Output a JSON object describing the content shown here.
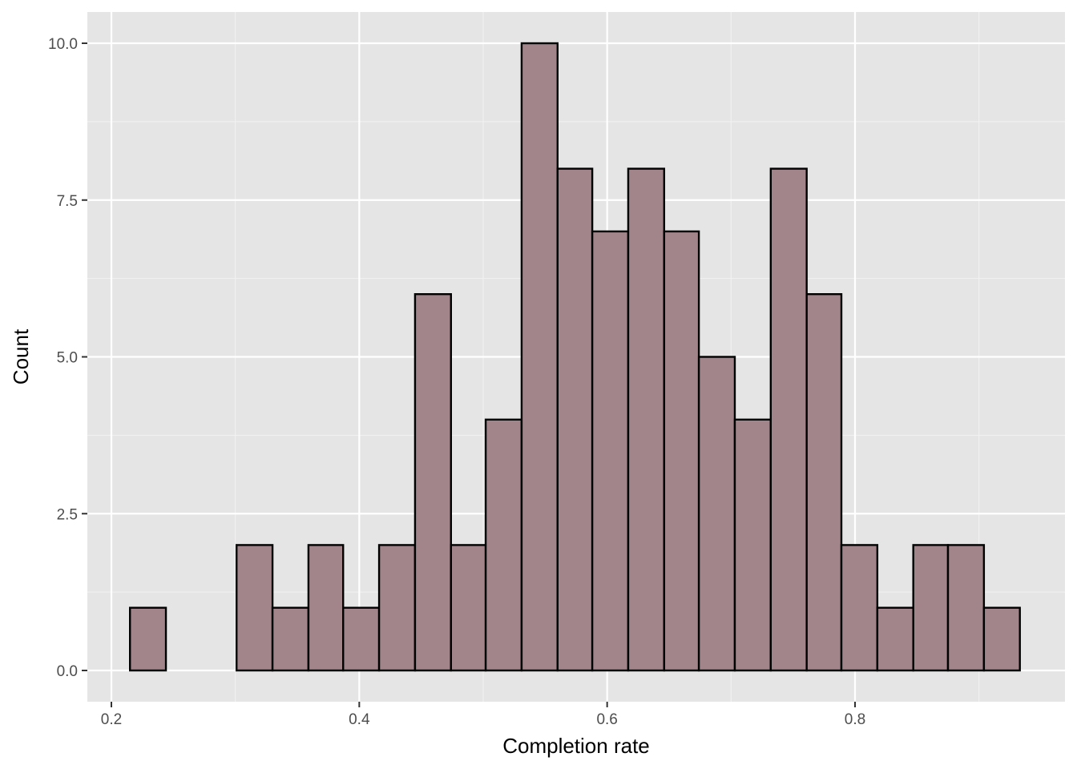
{
  "chart_data": {
    "type": "bar",
    "subtype": "histogram",
    "title": "",
    "xlabel": "Completion rate",
    "ylabel": "Count",
    "xlim": [
      0.2,
      0.9
    ],
    "ylim": [
      0,
      10
    ],
    "x_ticks": [
      0.2,
      0.4,
      0.6,
      0.8
    ],
    "x_tick_labels": [
      "0.2",
      "0.4",
      "0.6",
      "0.8"
    ],
    "y_ticks": [
      0,
      2.5,
      5,
      7.5,
      10
    ],
    "y_tick_labels": [
      "0.0",
      "2.5",
      "5.0",
      "7.5",
      "10.0"
    ],
    "bin_width": 0.0287,
    "bins": [
      {
        "x0": 0.215,
        "x1": 0.244,
        "count": 1
      },
      {
        "x0": 0.244,
        "x1": 0.273,
        "count": 0
      },
      {
        "x0": 0.273,
        "x1": 0.301,
        "count": 0
      },
      {
        "x0": 0.301,
        "x1": 0.33,
        "count": 2
      },
      {
        "x0": 0.33,
        "x1": 0.359,
        "count": 1
      },
      {
        "x0": 0.359,
        "x1": 0.387,
        "count": 2
      },
      {
        "x0": 0.387,
        "x1": 0.416,
        "count": 1
      },
      {
        "x0": 0.416,
        "x1": 0.445,
        "count": 2
      },
      {
        "x0": 0.445,
        "x1": 0.474,
        "count": 6
      },
      {
        "x0": 0.474,
        "x1": 0.502,
        "count": 2
      },
      {
        "x0": 0.502,
        "x1": 0.531,
        "count": 4
      },
      {
        "x0": 0.531,
        "x1": 0.56,
        "count": 10
      },
      {
        "x0": 0.56,
        "x1": 0.588,
        "count": 8
      },
      {
        "x0": 0.588,
        "x1": 0.617,
        "count": 7
      },
      {
        "x0": 0.617,
        "x1": 0.646,
        "count": 8
      },
      {
        "x0": 0.646,
        "x1": 0.674,
        "count": 7
      },
      {
        "x0": 0.674,
        "x1": 0.703,
        "count": 5
      },
      {
        "x0": 0.703,
        "x1": 0.732,
        "count": 4
      },
      {
        "x0": 0.732,
        "x1": 0.761,
        "count": 8
      },
      {
        "x0": 0.761,
        "x1": 0.789,
        "count": 6
      },
      {
        "x0": 0.789,
        "x1": 0.818,
        "count": 2
      },
      {
        "x0": 0.818,
        "x1": 0.847,
        "count": 1
      },
      {
        "x0": 0.847,
        "x1": 0.875,
        "count": 2
      },
      {
        "x0": 0.875,
        "x1": 0.904,
        "count": 2
      },
      {
        "x0": 0.904,
        "x1": 0.933,
        "count": 1
      }
    ],
    "grid": true,
    "legend": "none",
    "colors": {
      "panel_background": "#e5e5e5",
      "grid_major": "#ffffff",
      "grid_minor": "#f2f2f2",
      "bar_fill": "#a1858a",
      "bar_stroke": "#000000",
      "tick": "#333333"
    }
  }
}
